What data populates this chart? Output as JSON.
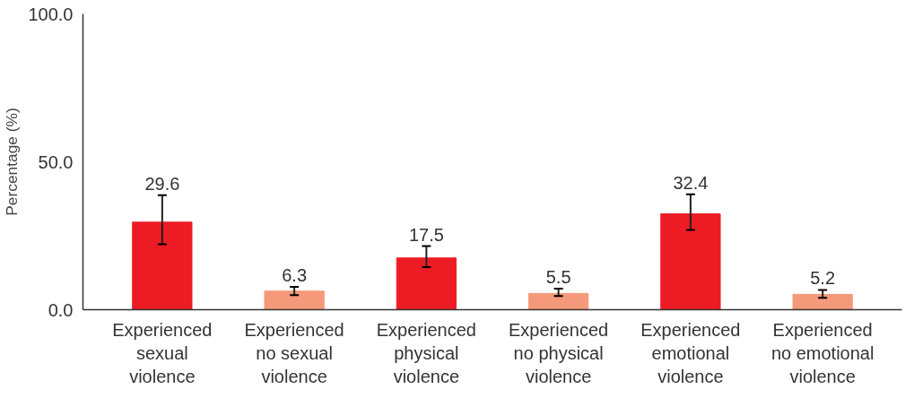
{
  "chart_data": {
    "type": "bar",
    "ylabel": "Percentage (%)",
    "categories": [
      "Experienced sexual violence",
      "Experienced no sexual violence",
      "Experienced physical violence",
      "Experienced no physical violence",
      "Experienced emotional violence",
      "Experienced no emotional violence"
    ],
    "values": [
      29.6,
      6.3,
      17.5,
      5.5,
      32.4,
      5.2
    ],
    "colors": [
      "#ed1c24",
      "#f4997a",
      "#ed1c24",
      "#f4997a",
      "#ed1c24",
      "#f4997a"
    ],
    "errors": [
      [
        22.1,
        38.7
      ],
      [
        4.9,
        7.7
      ],
      [
        14.4,
        21.5
      ],
      [
        4.6,
        7.1
      ],
      [
        27.0,
        39.0
      ],
      [
        4.0,
        6.7
      ]
    ],
    "ylim": [
      0,
      100
    ],
    "yticks": [
      {
        "value": 0,
        "label": "0.0"
      },
      {
        "value": 50,
        "label": "50.0"
      },
      {
        "value": 100,
        "label": "100.0"
      }
    ],
    "data_labels": true,
    "grid": false
  }
}
